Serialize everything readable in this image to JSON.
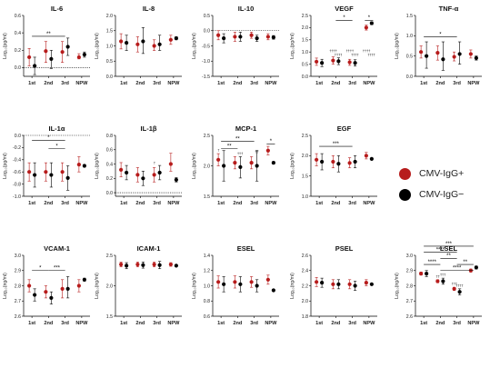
{
  "legend": {
    "items": [
      {
        "label": "CMV-IgG+",
        "color": "#b71c1c"
      },
      {
        "label": "CMV-IgG−",
        "color": "#000000"
      }
    ]
  },
  "shared": {
    "categories": [
      "1st",
      "2nd",
      "3rd",
      "NPW"
    ],
    "ylabel_pg": "Log₁₀(pg/ml)",
    "ylabel_ng": "Log₁₀(ng/ml)",
    "colors": {
      "pos": "#b71c1c",
      "neg": "#000000"
    }
  },
  "chart_data": [
    {
      "type": "scatter",
      "title": "IL-6",
      "ylabel": "Log₁₀(pg/ml)",
      "categories": [
        "1st",
        "2nd",
        "3rd",
        "NPW"
      ],
      "yticks": [
        0.0,
        0.2,
        0.4,
        0.6
      ],
      "ylim": [
        -0.1,
        0.6
      ],
      "tick_format": 1,
      "refline": 0,
      "series": [
        {
          "name": "CMV-IgG+",
          "values": [
            0.12,
            0.19,
            0.18,
            0.12
          ],
          "err_low": [
            0.02,
            0.06,
            0.06,
            0.1
          ],
          "err_high": [
            0.22,
            0.3,
            0.3,
            0.16
          ]
        },
        {
          "name": "CMV-IgG−",
          "values": [
            0.02,
            0.1,
            0.24,
            0.15
          ],
          "err_low": [
            -0.08,
            -0.01,
            0.14,
            0.12
          ],
          "err_high": [
            0.12,
            0.2,
            0.34,
            0.18
          ]
        }
      ],
      "annotations": [
        {
          "text": "**",
          "from": 0,
          "to": 2,
          "y": 0.36
        }
      ]
    },
    {
      "type": "scatter",
      "title": "IL-8",
      "ylabel": "Log₁₀(pg/ml)",
      "categories": [
        "1st",
        "2nd",
        "3rd",
        "NPW"
      ],
      "yticks": [
        0.0,
        0.5,
        1.0,
        1.5,
        2.0
      ],
      "ylim": [
        0,
        2.0
      ],
      "tick_format": 1,
      "series": [
        {
          "name": "CMV-IgG+",
          "values": [
            1.15,
            1.05,
            1.0,
            1.2
          ],
          "err_low": [
            0.9,
            0.8,
            0.85,
            1.05
          ],
          "err_high": [
            1.4,
            1.3,
            1.2,
            1.35
          ]
        },
        {
          "name": "CMV-IgG−",
          "values": [
            1.1,
            1.15,
            1.05,
            1.25
          ],
          "err_low": [
            0.85,
            0.75,
            0.85,
            1.2
          ],
          "err_high": [
            1.35,
            1.6,
            1.35,
            1.3
          ]
        }
      ],
      "annotations": []
    },
    {
      "type": "scatter",
      "title": "IL-10",
      "ylabel": "Log₁₀(pg/ml)",
      "categories": [
        "1st",
        "2nd",
        "3rd",
        "NPW"
      ],
      "yticks": [
        -1.5,
        -1.0,
        -0.5,
        0.0,
        0.5
      ],
      "ylim": [
        -1.5,
        0.5
      ],
      "tick_format": 1,
      "refline": 0,
      "series": [
        {
          "name": "CMV-IgG+",
          "values": [
            -0.15,
            -0.2,
            -0.15,
            -0.2
          ],
          "err_low": [
            -0.3,
            -0.35,
            -0.25,
            -0.3
          ],
          "err_high": [
            0.0,
            -0.05,
            -0.05,
            -0.1
          ]
        },
        {
          "name": "CMV-IgG−",
          "values": [
            -0.25,
            -0.2,
            -0.25,
            -0.22
          ],
          "err_low": [
            -0.4,
            -0.35,
            -0.35,
            -0.28
          ],
          "err_high": [
            -0.1,
            -0.05,
            -0.15,
            -0.16
          ]
        }
      ],
      "annotations": []
    },
    {
      "type": "scatter",
      "title": "VEGF",
      "ylabel": "Log₁₀(pg/ml)",
      "categories": [
        "1st",
        "2nd",
        "3rd",
        "NPW"
      ],
      "yticks": [
        0.0,
        0.5,
        1.0,
        1.5,
        2.0,
        2.5
      ],
      "ylim": [
        0,
        2.5
      ],
      "tick_format": 1,
      "series": [
        {
          "name": "CMV-IgG+",
          "values": [
            0.6,
            0.65,
            0.58,
            2.0
          ],
          "err_low": [
            0.45,
            0.5,
            0.45,
            1.9
          ],
          "err_high": [
            0.75,
            0.8,
            0.7,
            2.1
          ]
        },
        {
          "name": "CMV-IgG−",
          "values": [
            0.55,
            0.62,
            0.55,
            2.18
          ],
          "err_low": [
            0.4,
            0.48,
            0.42,
            2.12
          ],
          "err_high": [
            0.7,
            0.76,
            0.68,
            2.24
          ]
        }
      ],
      "annotations": [
        {
          "text": "*",
          "from": 1,
          "to": 2,
          "y": 2.3
        },
        {
          "text": "*",
          "from": 2.75,
          "to": 3.25,
          "y": 2.3
        }
      ],
      "point_labels": [
        {
          "text": "††††",
          "x": 0.85,
          "y": 1.0
        },
        {
          "text": "††††",
          "x": 1.15,
          "y": 0.84
        },
        {
          "text": "††††",
          "x": 1.85,
          "y": 1.0
        },
        {
          "text": "††††",
          "x": 2.15,
          "y": 0.84
        },
        {
          "text": "††††",
          "x": 2.85,
          "y": 1.0
        },
        {
          "text": "††††",
          "x": 3.15,
          "y": 0.84
        }
      ]
    },
    {
      "type": "scatter",
      "title": "TNF-α",
      "ylabel": "Log₁₀(pg/ml)",
      "categories": [
        "1st",
        "2nd",
        "3rd",
        "NPW"
      ],
      "yticks": [
        0.0,
        0.5,
        1.0,
        1.5
      ],
      "ylim": [
        0,
        1.5
      ],
      "tick_format": 1,
      "series": [
        {
          "name": "CMV-IgG+",
          "values": [
            0.6,
            0.58,
            0.48,
            0.55
          ],
          "err_low": [
            0.45,
            0.4,
            0.38,
            0.45
          ],
          "err_high": [
            0.75,
            0.75,
            0.6,
            0.65
          ]
        },
        {
          "name": "CMV-IgG−",
          "values": [
            0.5,
            0.42,
            0.55,
            0.45
          ],
          "err_low": [
            0.2,
            0.15,
            0.3,
            0.4
          ],
          "err_high": [
            0.85,
            0.85,
            0.85,
            0.5
          ]
        }
      ],
      "annotations": [
        {
          "text": "*",
          "from": 0,
          "to": 2,
          "y": 0.97
        }
      ]
    },
    {
      "type": "scatter",
      "title": "IL-1α",
      "ylabel": "Log₁₀(pg/ml)",
      "categories": [
        "1st",
        "2nd",
        "3rd",
        "NPW"
      ],
      "yticks": [
        -1.0,
        -0.8,
        -0.6,
        -0.4,
        -0.2,
        0.0
      ],
      "ylim": [
        -1.0,
        0.0
      ],
      "tick_format": 1,
      "refline": 0,
      "series": [
        {
          "name": "CMV-IgG+",
          "values": [
            -0.6,
            -0.6,
            -0.6,
            -0.48
          ],
          "err_low": [
            -0.75,
            -0.75,
            -0.75,
            -0.6
          ],
          "err_high": [
            -0.45,
            -0.45,
            -0.45,
            -0.35
          ]
        },
        {
          "name": "CMV-IgG−",
          "values": [
            -0.65,
            -0.65,
            -0.7,
            -0.5
          ],
          "err_low": [
            -0.85,
            -0.85,
            -0.9,
            -0.52
          ],
          "err_high": [
            -0.45,
            -0.45,
            -0.5,
            -0.48
          ]
        }
      ],
      "annotations": [
        {
          "text": "*",
          "from": 0,
          "to": 2,
          "y": -0.08
        },
        {
          "text": "*",
          "from": 1,
          "to": 2,
          "y": -0.22
        }
      ]
    },
    {
      "type": "scatter",
      "title": "IL-1β",
      "ylabel": "Log₁₀(pg/ml)",
      "categories": [
        "1st",
        "2nd",
        "3rd",
        "NPW"
      ],
      "yticks": [
        0.0,
        0.2,
        0.4,
        0.6,
        0.8
      ],
      "ylim": [
        -0.05,
        0.8
      ],
      "tick_format": 1,
      "refline": 0,
      "series": [
        {
          "name": "CMV-IgG+",
          "values": [
            0.32,
            0.25,
            0.25,
            0.4
          ],
          "err_low": [
            0.22,
            0.15,
            0.15,
            0.3
          ],
          "err_high": [
            0.42,
            0.35,
            0.35,
            0.55
          ]
        },
        {
          "name": "CMV-IgG−",
          "values": [
            0.28,
            0.2,
            0.28,
            0.18
          ],
          "err_low": [
            0.18,
            0.1,
            0.18,
            0.15
          ],
          "err_high": [
            0.38,
            0.3,
            0.38,
            0.21
          ]
        }
      ],
      "annotations": [],
      "point_labels": [
        {
          "text": "†",
          "x": 1.85,
          "y": 0.4
        }
      ]
    },
    {
      "type": "scatter",
      "title": "MCP-1",
      "ylabel": "Log₁₀(pg/ml)",
      "categories": [
        "1st",
        "2nd",
        "3rd",
        "NPW"
      ],
      "yticks": [
        1.5,
        2.0,
        2.5
      ],
      "ylim": [
        1.5,
        2.5
      ],
      "tick_format": 1,
      "series": [
        {
          "name": "CMV-IgG+",
          "values": [
            2.1,
            2.05,
            2.05,
            2.25
          ],
          "err_low": [
            2.0,
            1.95,
            1.95,
            2.18
          ],
          "err_high": [
            2.2,
            2.15,
            2.15,
            2.32
          ]
        },
        {
          "name": "CMV-IgG−",
          "values": [
            2.0,
            1.98,
            2.0,
            2.05
          ],
          "err_low": [
            1.75,
            1.8,
            1.75,
            2.03
          ],
          "err_high": [
            2.25,
            2.15,
            2.25,
            2.07
          ]
        }
      ],
      "annotations": [
        {
          "text": "**",
          "from": 0,
          "to": 2,
          "y": 2.4
        },
        {
          "text": "**",
          "from": 0,
          "to": 1,
          "y": 2.28
        },
        {
          "text": "*",
          "from": 2.75,
          "to": 3.25,
          "y": 2.36
        }
      ],
      "point_labels": [
        {
          "text": "†",
          "x": -0.15,
          "y": 2.24
        },
        {
          "text": "†††",
          "x": 1.15,
          "y": 2.19
        },
        {
          "text": "††",
          "x": 2.15,
          "y": 2.21
        }
      ]
    },
    {
      "type": "scatter",
      "title": "EGF",
      "ylabel": "Log₁₀(pg/ml)",
      "categories": [
        "1st",
        "2nd",
        "3rd",
        "NPW"
      ],
      "yticks": [
        1.0,
        1.5,
        2.0,
        2.5
      ],
      "ylim": [
        1.0,
        2.5
      ],
      "tick_format": 1,
      "series": [
        {
          "name": "CMV-IgG+",
          "values": [
            1.9,
            1.85,
            1.82,
            2.0
          ],
          "err_low": [
            1.75,
            1.7,
            1.7,
            1.92
          ],
          "err_high": [
            2.05,
            2.0,
            1.95,
            2.08
          ]
        },
        {
          "name": "CMV-IgG−",
          "values": [
            1.85,
            1.8,
            1.85,
            1.92
          ],
          "err_low": [
            1.65,
            1.6,
            1.7,
            1.9
          ],
          "err_high": [
            2.05,
            2.0,
            2.0,
            1.94
          ]
        }
      ],
      "annotations": [
        {
          "text": "***",
          "from": 0,
          "to": 2,
          "y": 2.23
        }
      ]
    },
    {
      "type": "scatter",
      "title": "VCAM-1",
      "ylabel": "Log₁₀(ng/ml)",
      "categories": [
        "1st",
        "2nd",
        "3rd",
        "NPW"
      ],
      "yticks": [
        2.6,
        2.7,
        2.8,
        2.9,
        3.0
      ],
      "ylim": [
        2.6,
        3.0
      ],
      "tick_format": 1,
      "series": [
        {
          "name": "CMV-IgG+",
          "values": [
            2.8,
            2.76,
            2.78,
            2.8
          ],
          "err_low": [
            2.76,
            2.72,
            2.72,
            2.76
          ],
          "err_high": [
            2.84,
            2.8,
            2.84,
            2.84
          ]
        },
        {
          "name": "CMV-IgG−",
          "values": [
            2.74,
            2.72,
            2.78,
            2.84
          ],
          "err_low": [
            2.7,
            2.68,
            2.72,
            2.83
          ],
          "err_high": [
            2.78,
            2.76,
            2.86,
            2.85
          ]
        }
      ],
      "annotations": [
        {
          "text": "*",
          "from": 0,
          "to": 1,
          "y": 2.9
        },
        {
          "text": "***",
          "from": 1,
          "to": 2,
          "y": 2.9
        }
      ]
    },
    {
      "type": "scatter",
      "title": "ICAM-1",
      "ylabel": "Log₁₀(ng/ml)",
      "categories": [
        "1st",
        "2nd",
        "3rd",
        "NPW"
      ],
      "yticks": [
        1.5,
        2.0,
        2.5
      ],
      "ylim": [
        1.5,
        2.5
      ],
      "tick_format": 1,
      "series": [
        {
          "name": "CMV-IgG+",
          "values": [
            2.35,
            2.35,
            2.35,
            2.35
          ],
          "err_low": [
            2.31,
            2.31,
            2.31,
            2.32
          ],
          "err_high": [
            2.39,
            2.39,
            2.39,
            2.38
          ]
        },
        {
          "name": "CMV-IgG−",
          "values": [
            2.33,
            2.34,
            2.34,
            2.33
          ],
          "err_low": [
            2.28,
            2.29,
            2.28,
            2.32
          ],
          "err_high": [
            2.38,
            2.39,
            2.4,
            2.34
          ]
        }
      ],
      "annotations": []
    },
    {
      "type": "scatter",
      "title": "ESEL",
      "ylabel": "Log₁₀(ng/ml)",
      "categories": [
        "1st",
        "2nd",
        "3rd",
        "NPW"
      ],
      "yticks": [
        0.6,
        0.8,
        1.0,
        1.2,
        1.4
      ],
      "ylim": [
        0.6,
        1.4
      ],
      "tick_format": 1,
      "series": [
        {
          "name": "CMV-IgG+",
          "values": [
            1.05,
            1.05,
            1.05,
            1.08
          ],
          "err_low": [
            0.97,
            0.97,
            0.98,
            1.02
          ],
          "err_high": [
            1.13,
            1.13,
            1.12,
            1.14
          ]
        },
        {
          "name": "CMV-IgG−",
          "values": [
            1.02,
            1.02,
            1.0,
            0.94
          ],
          "err_low": [
            0.92,
            0.92,
            0.92,
            0.93
          ],
          "err_high": [
            1.12,
            1.12,
            1.08,
            0.95
          ]
        }
      ],
      "annotations": []
    },
    {
      "type": "scatter",
      "title": "PSEL",
      "ylabel": "Log₁₀(ng/ml)",
      "categories": [
        "1st",
        "2nd",
        "3rd",
        "NPW"
      ],
      "yticks": [
        1.8,
        2.0,
        2.2,
        2.4,
        2.6
      ],
      "ylim": [
        1.8,
        2.6
      ],
      "tick_format": 1,
      "series": [
        {
          "name": "CMV-IgG+",
          "values": [
            2.25,
            2.22,
            2.22,
            2.24
          ],
          "err_low": [
            2.19,
            2.16,
            2.16,
            2.2
          ],
          "err_high": [
            2.31,
            2.28,
            2.28,
            2.28
          ]
        },
        {
          "name": "CMV-IgG−",
          "values": [
            2.24,
            2.22,
            2.2,
            2.22
          ],
          "err_low": [
            2.18,
            2.16,
            2.14,
            2.21
          ],
          "err_high": [
            2.3,
            2.28,
            2.26,
            2.23
          ]
        }
      ],
      "annotations": []
    },
    {
      "type": "scatter",
      "title": "LSEL",
      "ylabel": "Log₁₀(ng/ml)",
      "categories": [
        "1st",
        "2nd",
        "3rd",
        "NPW"
      ],
      "yticks": [
        2.6,
        2.7,
        2.8,
        2.9,
        3.0
      ],
      "ylim": [
        2.6,
        3.0
      ],
      "tick_format": 1,
      "series": [
        {
          "name": "CMV-IgG+",
          "values": [
            2.88,
            2.83,
            2.78,
            2.9
          ],
          "err_low": [
            2.87,
            2.82,
            2.77,
            2.89
          ],
          "err_high": [
            2.89,
            2.84,
            2.79,
            2.91
          ]
        },
        {
          "name": "CMV-IgG−",
          "values": [
            2.88,
            2.83,
            2.76,
            2.92
          ],
          "err_low": [
            2.86,
            2.81,
            2.74,
            2.91
          ],
          "err_high": [
            2.9,
            2.85,
            2.78,
            2.93
          ]
        }
      ],
      "annotations": [
        {
          "text": "***",
          "from": 0,
          "to": 3,
          "y": 3.06
        },
        {
          "text": "****",
          "from": 0,
          "to": 2,
          "y": 3.02
        },
        {
          "text": "**",
          "from": 1,
          "to": 2,
          "y": 2.98
        },
        {
          "text": "****",
          "from": 0,
          "to": 1,
          "y": 2.94
        },
        {
          "text": "**",
          "from": 2,
          "to": 3,
          "y": 2.94
        },
        {
          "text": "****",
          "from": 1,
          "to": 3,
          "y": 2.9
        }
      ],
      "point_labels": [
        {
          "text": "††",
          "x": 0.85,
          "y": 2.855
        },
        {
          "text": "†††",
          "x": 1.15,
          "y": 2.865
        },
        {
          "text": "†††",
          "x": 1.85,
          "y": 2.805
        },
        {
          "text": "††††",
          "x": 2.15,
          "y": 2.795
        }
      ]
    }
  ]
}
